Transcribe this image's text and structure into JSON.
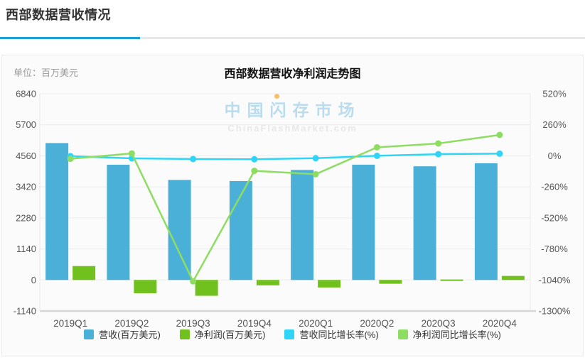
{
  "header": {
    "title": "西部数据营收情况"
  },
  "accent_colors": {
    "header_underline": "#1a9fd6",
    "panel_background": "#fbfbfb",
    "gridline": "#ececec",
    "axis_line": "#d6d6d6"
  },
  "chart_data": {
    "type": "bar",
    "title": "西部数据营收净利润走势图",
    "unit_label": "单位：百万美元",
    "watermark": {
      "line1": "中国闪存市场",
      "line2": "ChinaFlashMarket.com"
    },
    "categories": [
      "2019Q1",
      "2019Q2",
      "2019Q3",
      "2019Q4",
      "2020Q1",
      "2020Q2",
      "2020Q3",
      "2020Q4"
    ],
    "series": [
      {
        "name": "营收(百万美元)",
        "kind": "bar",
        "axis": "left",
        "color": "#4bb0d8",
        "values": [
          5028,
          4233,
          3674,
          3634,
          4040,
          4234,
          4175,
          4287
        ]
      },
      {
        "name": "净利润(百万美元)",
        "kind": "bar",
        "axis": "left",
        "color": "#70c11d",
        "values": [
          511,
          -487,
          -581,
          -197,
          -276,
          -139,
          17,
          148
        ]
      },
      {
        "name": "营收同比增长率(%)",
        "kind": "line",
        "axis": "right",
        "color": "#30d4f6",
        "values": [
          -3,
          -21,
          -27,
          -29,
          -20,
          0,
          14,
          18
        ]
      },
      {
        "name": "净利润同比增长率(%)",
        "kind": "line",
        "axis": "right",
        "color": "#8edd63",
        "values": [
          -25,
          20,
          -1052,
          -126,
          -154,
          71,
          103,
          175
        ]
      }
    ],
    "left_axis": {
      "min": -1140,
      "max": 6840,
      "ticks": [
        "6840",
        "5700",
        "4560",
        "3420",
        "2280",
        "1140",
        "0",
        "-1140"
      ]
    },
    "right_axis": {
      "min": -1300,
      "max": 520,
      "ticks": [
        "520%",
        "260%",
        "0%",
        "-260%",
        "-520%",
        "-780%",
        "-1040%",
        "-1300%"
      ]
    },
    "legend_position": "bottom",
    "grid": true
  }
}
